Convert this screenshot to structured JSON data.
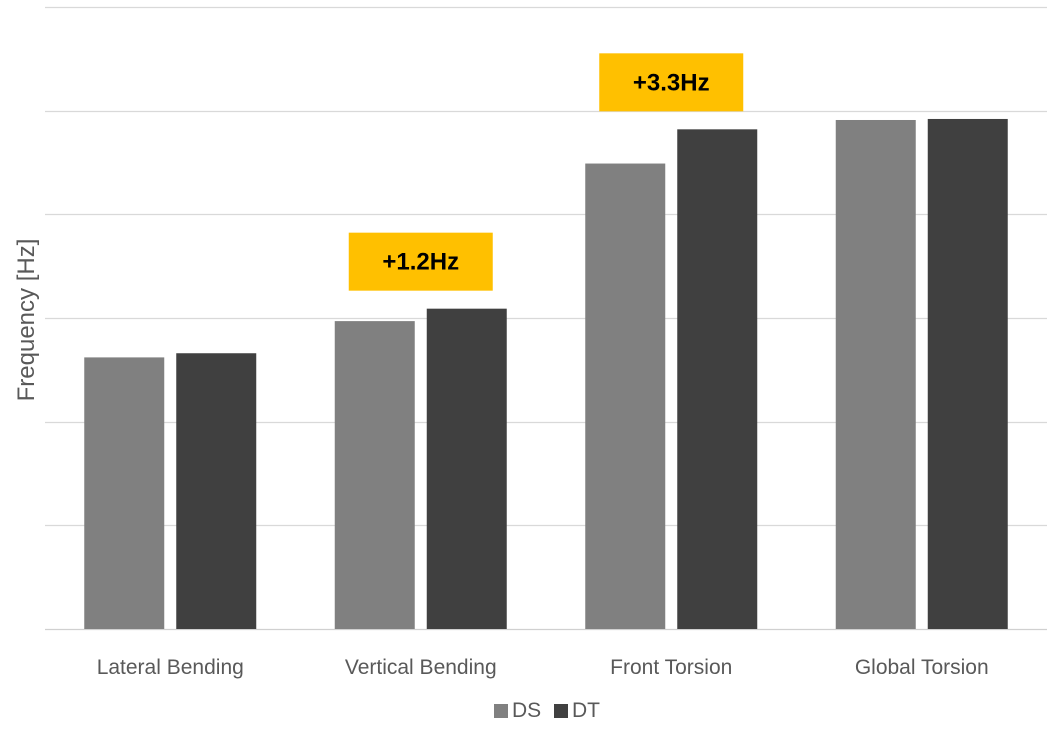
{
  "chart_data": {
    "type": "bar",
    "title": "",
    "xlabel": "",
    "ylabel": "Frequency [Hz]",
    "categories": [
      "Lateral Bending",
      "Vertical Bending",
      "Front Torsion",
      "Global Torsion"
    ],
    "series": [
      {
        "name": "DS",
        "color": "#808080",
        "values": [
          26.2,
          29.7,
          44.9,
          49.1
        ]
      },
      {
        "name": "DT",
        "color": "#404040",
        "values": [
          26.6,
          30.9,
          48.2,
          49.2
        ]
      }
    ],
    "ylim": [
      0,
      60
    ],
    "ytick_step": 10,
    "ytick_labels_shown": false,
    "grid": true,
    "legend_position": "bottom",
    "annotations": [
      {
        "text": "+1.2Hz",
        "category": "Vertical Bending",
        "color": "#FFC000"
      },
      {
        "text": "+3.3Hz",
        "category": "Front Torsion",
        "color": "#FFC000"
      }
    ]
  }
}
